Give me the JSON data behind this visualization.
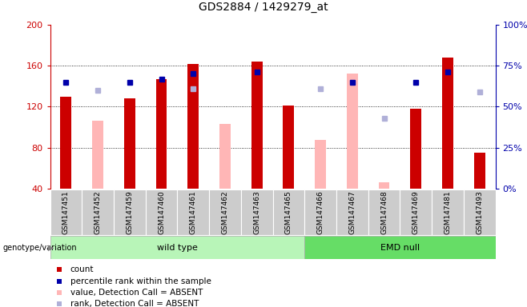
{
  "title": "GDS2884 / 1429279_at",
  "samples": [
    "GSM147451",
    "GSM147452",
    "GSM147459",
    "GSM147460",
    "GSM147461",
    "GSM147462",
    "GSM147463",
    "GSM147465",
    "GSM147466",
    "GSM147467",
    "GSM147468",
    "GSM147469",
    "GSM147481",
    "GSM147493"
  ],
  "wild_type_count": 8,
  "ylim_left": [
    40,
    200
  ],
  "ylim_right": [
    0,
    100
  ],
  "yticks_left": [
    40,
    80,
    120,
    160,
    200
  ],
  "yticks_right": [
    0,
    25,
    50,
    75,
    100
  ],
  "ytick_labels_right": [
    "0%",
    "25%",
    "50%",
    "75%",
    "100%"
  ],
  "count_values": [
    130,
    null,
    128,
    147,
    162,
    null,
    164,
    121,
    null,
    null,
    null,
    118,
    168,
    75
  ],
  "rank_pct": [
    65,
    null,
    65,
    67,
    70,
    null,
    71,
    null,
    null,
    65,
    null,
    65,
    71,
    null
  ],
  "absent_value_values": [
    null,
    106,
    null,
    null,
    null,
    103,
    null,
    null,
    88,
    152,
    46,
    null,
    null,
    null
  ],
  "absent_rank_pct": [
    null,
    60,
    null,
    null,
    61,
    null,
    null,
    null,
    61,
    null,
    43,
    null,
    null,
    59
  ],
  "count_color": "#cc0000",
  "rank_color": "#0000aa",
  "absent_value_color": "#ffb6b6",
  "absent_rank_color": "#b0b0d8",
  "bar_width": 0.35,
  "group_colors_wt": "#b8f5b8",
  "group_colors_emd": "#66dd66",
  "bg_color": "#ffffff",
  "xticklabel_bg": "#cccccc"
}
